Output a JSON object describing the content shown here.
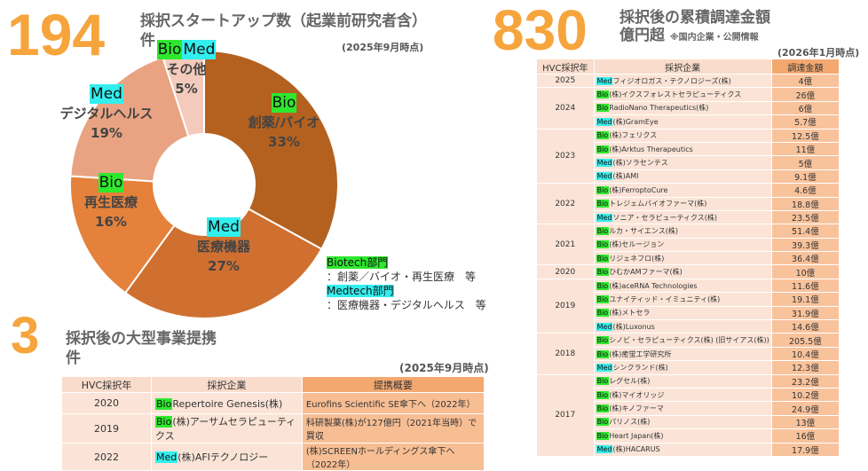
{
  "startups": {
    "number": "194",
    "title_line1": "採択スタートアップ数（起業前研究者含）",
    "title_line2": "件",
    "as_of": "(2025年9月時点)"
  },
  "chart_data": {
    "type": "pie",
    "slices": [
      {
        "label": "創薬/バイオ",
        "value": 33,
        "value_label": "33%",
        "tag": "Bio",
        "color": "#b4611f"
      },
      {
        "label": "医療機器",
        "value": 27,
        "value_label": "27%",
        "tag": "Med",
        "color": "#d07030"
      },
      {
        "label": "再生医療",
        "value": 16,
        "value_label": "16%",
        "tag": "Bio",
        "color": "#e5813a"
      },
      {
        "label": "デジタルヘルス",
        "value": 19,
        "value_label": "19%",
        "tag": "Med",
        "color": "#e9a382"
      },
      {
        "label": "その他",
        "value": 5,
        "value_label": "5%",
        "tag": "BioMed",
        "color": "#f3cabb"
      }
    ]
  },
  "tags": {
    "bio": "Bio",
    "med": "Med",
    "bio_color": "#2ee82e",
    "med_color": "#33eeee"
  },
  "legend": {
    "bio_title": "Biotech部門",
    "bio_desc": "：創薬／バイオ・再生医療　等",
    "med_title": "Medtech部門",
    "med_desc": "：医療機器・デジタルヘルス　等"
  },
  "funding": {
    "number": "830",
    "title_line1": "採択後の累積調達金額",
    "title_line2": "億円超",
    "note": "※国内企業・公開情報",
    "as_of": "(2026年1月時点)",
    "headers": [
      "HVC採択年",
      "採択企業",
      "調達金額"
    ],
    "groups": [
      {
        "year": "2025",
        "rows": [
          [
            "Med",
            "フィジオロガス・テクノロジーズ(株)",
            "4億"
          ]
        ]
      },
      {
        "year": "2024",
        "rows": [
          [
            "Bio",
            "(株)イクスフォレストセラピューティクス",
            "26億"
          ],
          [
            "Bio",
            "RadioNano Therapeutics(株)",
            "6億"
          ],
          [
            "Med",
            "(株)GramEye",
            "5.7億"
          ]
        ]
      },
      {
        "year": "2023",
        "rows": [
          [
            "Bio",
            "(株)フェリクス",
            "12.5億"
          ],
          [
            "Bio",
            "(株)Arktus Therapeutics",
            "11億"
          ],
          [
            "Med",
            "(株)ソラセンテス",
            "5億"
          ],
          [
            "Med",
            "(株)AMI",
            "9.1億"
          ]
        ]
      },
      {
        "year": "2022",
        "rows": [
          [
            "Bio",
            "(株)FerroptoCure",
            "4.6億"
          ],
          [
            "Bio",
            "トレジェムバイオファーマ(株)",
            "18.8億"
          ],
          [
            "Med",
            "ソニア・セラピューティクス(株)",
            "23.5億"
          ]
        ]
      },
      {
        "year": "2021",
        "rows": [
          [
            "Bio",
            "ルカ・サイエンス(株)",
            "51.4億"
          ],
          [
            "Bio",
            "(株)セルージョン",
            "39.3億"
          ],
          [
            "Bio",
            "リジェネフロ(株)",
            "36.4億"
          ]
        ]
      },
      {
        "year": "2020",
        "rows": [
          [
            "Bio",
            "ひむかAMファーマ(株)",
            "10億"
          ]
        ]
      },
      {
        "year": "2019",
        "rows": [
          [
            "Bio",
            "(株)aceRNA Technologies",
            "11.6億"
          ],
          [
            "Bio",
            "ユナイティッド・イミュニティ(株)",
            "19.1億"
          ],
          [
            "Bio",
            "(株)メトセラ",
            "31.9億"
          ],
          [
            "Med",
            "(株)Luxonus",
            "14.6億"
          ]
        ]
      },
      {
        "year": "2018",
        "rows": [
          [
            "Bio",
            "シノビ・セラピューティクス(株) (旧サイアス(株))",
            "205.5億"
          ],
          [
            "Bio",
            "(株)癒蛍工学研究所",
            "10.4億"
          ],
          [
            "Med",
            "シンクランド(株)",
            "12.3億"
          ]
        ]
      },
      {
        "year": "2017",
        "rows": [
          [
            "Bio",
            "レグセル(株)",
            "23.2億"
          ],
          [
            "Bio",
            "(株)マイオリッジ",
            "10.2億"
          ],
          [
            "Bio",
            "(株)キノファーマ",
            "24.9億"
          ],
          [
            "Bio",
            "パリノス(株)",
            "13億"
          ],
          [
            "Bio",
            "Heart Japan(株)",
            "16億"
          ],
          [
            "Med",
            "(株)HACARUS",
            "17.9億"
          ]
        ]
      }
    ]
  },
  "alliances": {
    "number": "3",
    "title_line1": "採択後の大型事業提携",
    "title_line2": "件",
    "as_of": "(2025年9月時点)",
    "headers": [
      "HVC採択年",
      "採択企業",
      "提携概要"
    ],
    "rows": [
      [
        "2020",
        "Bio",
        "Repertoire Genesis(株)",
        "Eurofins Scientific SE傘下へ（2022年）"
      ],
      [
        "2019",
        "Bio",
        "(株)アーサムセラピューティクス",
        "科研製薬(株)が127億円（2021年当時）で買収"
      ],
      [
        "2022",
        "Med",
        "(株)AFIテクノロジー",
        "(株)SCREENホールディングス傘下へ（2022年）"
      ]
    ]
  }
}
